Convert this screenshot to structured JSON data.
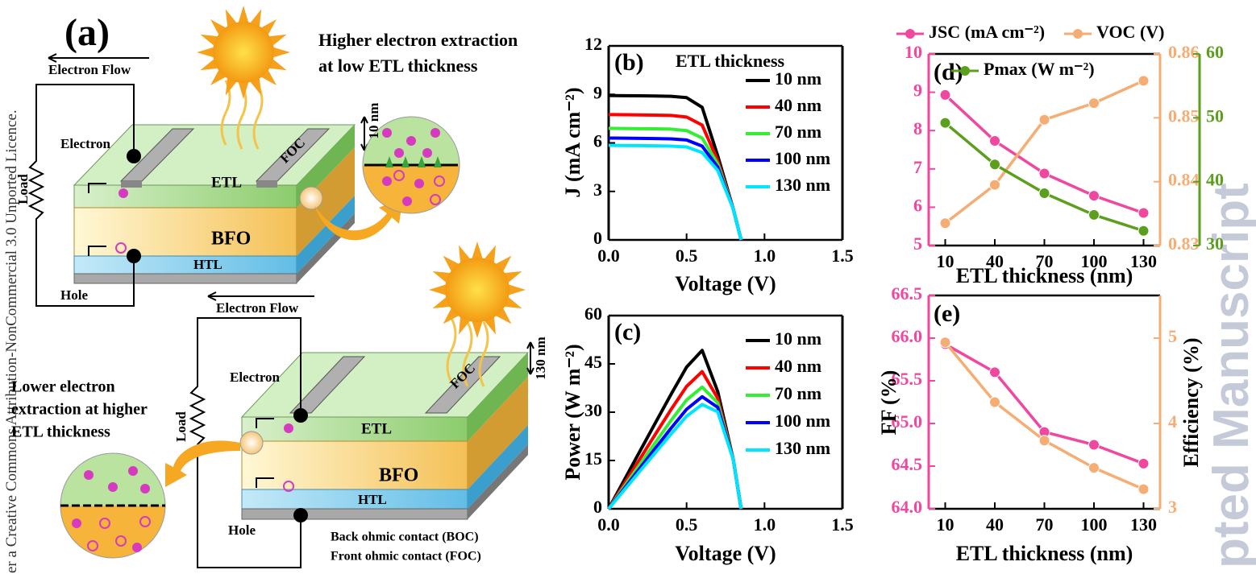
{
  "watermarks": {
    "left": "er a Creative Commons Attribution-NonCommercial 3.0 Unported Licence.",
    "right": "pted Manuscript"
  },
  "diagram": {
    "label": "(a)",
    "top": {
      "flow": "Electron Flow",
      "electron": "Electron",
      "load": "Load",
      "etl": "ETL",
      "foc": "FOC",
      "bfo": "BFO",
      "htl": "HTL",
      "hole": "Hole",
      "thickness": "10 nm",
      "note": [
        "Higher electron extraction",
        "at low ETL thickness"
      ]
    },
    "bottom": {
      "flow": "Electron Flow",
      "electron": "Electron",
      "load": "Load",
      "etl": "ETL",
      "foc": "FOC",
      "bfo": "BFO",
      "htl": "HTL",
      "hole": "Hole",
      "thickness": "130 nm",
      "note": [
        "Lower electron",
        "extraction at higher",
        "ETL thickness"
      ]
    },
    "contacts": [
      "Back ohmic contact (BOC)",
      "Front ohmic contact (FOC)"
    ]
  },
  "chart_data": [
    {
      "type": "line",
      "panel_label": "(b)",
      "legend_title": "ETL thickness",
      "xlabel": "Voltage (V)",
      "ylabel": "J (mA cm⁻²)",
      "x": [
        0,
        0.1,
        0.2,
        0.3,
        0.4,
        0.5,
        0.6,
        0.7,
        0.8,
        0.85
      ],
      "xlim": [
        0,
        1.5
      ],
      "xticks": [
        {
          "value": 0,
          "label": "0.0"
        },
        0.5,
        {
          "value": 1,
          "label": "1.0"
        },
        1.5
      ],
      "ylim": [
        0,
        12
      ],
      "yticks": [
        0,
        3,
        6,
        9,
        12
      ],
      "series": [
        {
          "name": "10 nm",
          "color": "#000000",
          "values": [
            8.93,
            8.92,
            8.91,
            8.9,
            8.88,
            8.8,
            8.2,
            5.2,
            1.9,
            0
          ]
        },
        {
          "name": "40 nm",
          "color": "#ff0000",
          "values": [
            7.75,
            7.74,
            7.73,
            7.72,
            7.7,
            7.6,
            7.1,
            4.9,
            1.9,
            0
          ]
        },
        {
          "name": "70 nm",
          "color": "#33ee33",
          "values": [
            6.9,
            6.89,
            6.88,
            6.87,
            6.85,
            6.76,
            6.3,
            4.7,
            1.9,
            0
          ]
        },
        {
          "name": "100 nm",
          "color": "#0000ff",
          "values": [
            6.3,
            6.29,
            6.28,
            6.27,
            6.25,
            6.18,
            5.8,
            4.5,
            1.9,
            0
          ]
        },
        {
          "name": "130 nm",
          "color": "#00e5ff",
          "values": [
            5.85,
            5.84,
            5.83,
            5.82,
            5.8,
            5.75,
            5.4,
            4.3,
            1.9,
            0
          ]
        }
      ]
    },
    {
      "type": "line",
      "panel_label": "(c)",
      "xlabel": "Voltage (V)",
      "ylabel": "Power (W m⁻²)",
      "x": [
        0,
        0.1,
        0.2,
        0.3,
        0.4,
        0.5,
        0.6,
        0.7,
        0.8,
        0.85
      ],
      "xlim": [
        0,
        1.5
      ],
      "xticks": [
        {
          "value": 0,
          "label": "0.0"
        },
        0.5,
        {
          "value": 1,
          "label": "1.0"
        },
        1.5
      ],
      "ylim": [
        0,
        60
      ],
      "yticks": [
        0,
        15,
        30,
        45,
        60
      ],
      "series": [
        {
          "name": "10 nm",
          "color": "#000000",
          "values": [
            0,
            8.92,
            17.82,
            26.7,
            35.52,
            44,
            49.2,
            36.4,
            15.2,
            0
          ]
        },
        {
          "name": "40 nm",
          "color": "#ff0000",
          "values": [
            0,
            7.74,
            15.46,
            23.16,
            30.8,
            38,
            42.6,
            34.3,
            15.2,
            0
          ]
        },
        {
          "name": "70 nm",
          "color": "#33ee33",
          "values": [
            0,
            6.89,
            13.76,
            20.61,
            27.4,
            33.8,
            37.8,
            32.9,
            15.2,
            0
          ]
        },
        {
          "name": "100 nm",
          "color": "#0000ff",
          "values": [
            0,
            6.29,
            12.56,
            18.81,
            25,
            30.9,
            34.8,
            31.5,
            15.2,
            0
          ]
        },
        {
          "name": "130 nm",
          "color": "#00e5ff",
          "values": [
            0,
            5.84,
            11.66,
            17.46,
            23.2,
            28.75,
            32.4,
            30.1,
            15.2,
            0
          ]
        }
      ]
    },
    {
      "type": "line",
      "panel_label": "(d)",
      "xlabel": "ETL thickness (nm)",
      "markers": true,
      "x": [
        10,
        40,
        70,
        100,
        130
      ],
      "xlim": [
        0,
        140
      ],
      "xticks": [
        10,
        40,
        70,
        100,
        130
      ],
      "ylim": [
        5,
        10
      ],
      "yticks": [
        5,
        6,
        7,
        8,
        9,
        10
      ],
      "y_color": "#f0479f",
      "y2lim": [
        0.83,
        0.86
      ],
      "y2ticks": [
        0.83,
        0.84,
        0.85,
        0.86
      ],
      "y2_color": "#f5ad74",
      "y3lim": [
        30,
        60
      ],
      "y3ticks": [
        30,
        40,
        50,
        60
      ],
      "y3_color": "#5c9e1e",
      "series": [
        {
          "name": "JSC (mA cm⁻²)",
          "color": "#f0479f",
          "values": [
            8.93,
            7.73,
            6.88,
            6.3,
            5.85
          ]
        },
        {
          "name": "VOC (V)",
          "color": "#f5ad74",
          "axis": "y2",
          "values": [
            0.8335,
            0.8395,
            0.8497,
            0.8523,
            0.8558
          ]
        },
        {
          "name": "Pmax (W m⁻²)",
          "color": "#5c9e1e",
          "axis": "y3",
          "values": [
            49.2,
            42.7,
            38.2,
            34.8,
            32.3
          ]
        }
      ]
    },
    {
      "type": "line",
      "panel_label": "(e)",
      "xlabel": "ETL thickness (nm)",
      "ylabel": "FF (%)",
      "y2label": "Efficiency (%)",
      "markers": true,
      "x": [
        10,
        40,
        70,
        100,
        130
      ],
      "xlim": [
        0,
        140
      ],
      "xticks": [
        10,
        40,
        70,
        100,
        130
      ],
      "ylim": [
        64,
        66.5
      ],
      "yticks": [
        {
          "value": 64,
          "label": "64.0"
        },
        64.5,
        {
          "value": 65,
          "label": "65.0"
        },
        65.5,
        {
          "value": 66,
          "label": "66.0"
        },
        66.5
      ],
      "y_color": "#f0479f",
      "y2lim": [
        3,
        5.5
      ],
      "y2ticks": [
        3,
        4,
        5
      ],
      "y2_color": "#f5ad74",
      "series": [
        {
          "color": "#f0479f",
          "values": [
            65.93,
            65.6,
            64.9,
            64.75,
            64.53
          ]
        },
        {
          "color": "#f5ad74",
          "axis": "y2",
          "values": [
            4.95,
            4.25,
            3.8,
            3.48,
            3.23
          ]
        }
      ]
    }
  ]
}
